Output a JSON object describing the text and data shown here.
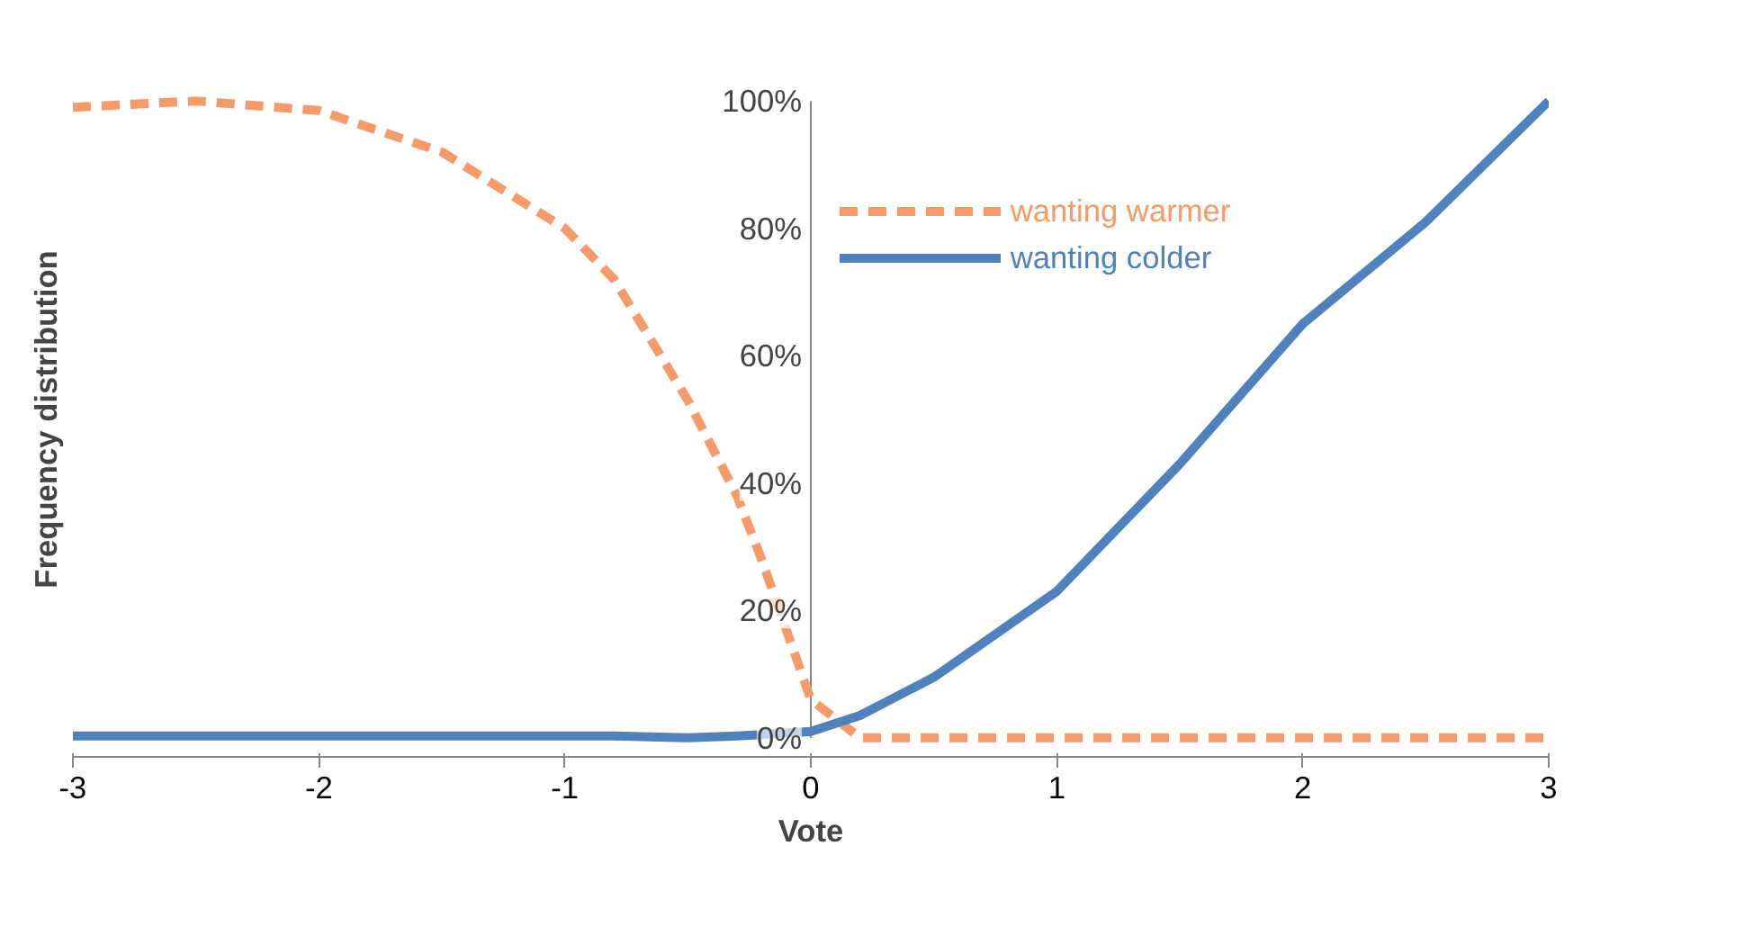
{
  "chart_data": {
    "type": "line",
    "xlabel": "Vote",
    "ylabel": "Frequency distribution",
    "xlim": [
      -3,
      3
    ],
    "xticks": [
      -3,
      -2,
      -1,
      0,
      1,
      2,
      3
    ],
    "ylim": [
      0,
      100
    ],
    "yticks": [
      {
        "value": 0,
        "label": "0%"
      },
      {
        "value": 20,
        "label": "20%"
      },
      {
        "value": 40,
        "label": "40%"
      },
      {
        "value": 60,
        "label": "60%"
      },
      {
        "value": 80,
        "label": "80%"
      },
      {
        "value": 100,
        "label": "100%"
      }
    ],
    "x": [
      -3,
      -2.5,
      -2,
      -1.5,
      -1,
      -0.8,
      -0.5,
      -0.3,
      -0.2,
      0,
      0.2,
      0.5,
      1,
      1.5,
      2,
      2.5,
      3
    ],
    "series": [
      {
        "name": "wanting warmer",
        "color": "#f79a6a",
        "line_style": "dashed",
        "values": [
          99,
          100,
          98.5,
          92,
          80,
          72,
          53,
          38,
          28,
          6,
          0,
          0,
          0,
          0,
          0,
          0,
          0
        ]
      },
      {
        "name": "wanting colder",
        "color": "#4f81bd",
        "line_style": "solid",
        "values": [
          0.3,
          0.3,
          0.3,
          0.3,
          0.3,
          0.3,
          0,
          0.3,
          0.5,
          1,
          3.5,
          9.5,
          23,
          43,
          65,
          81,
          100
        ]
      }
    ],
    "legend": "top right",
    "grid": false,
    "marker": "none"
  }
}
